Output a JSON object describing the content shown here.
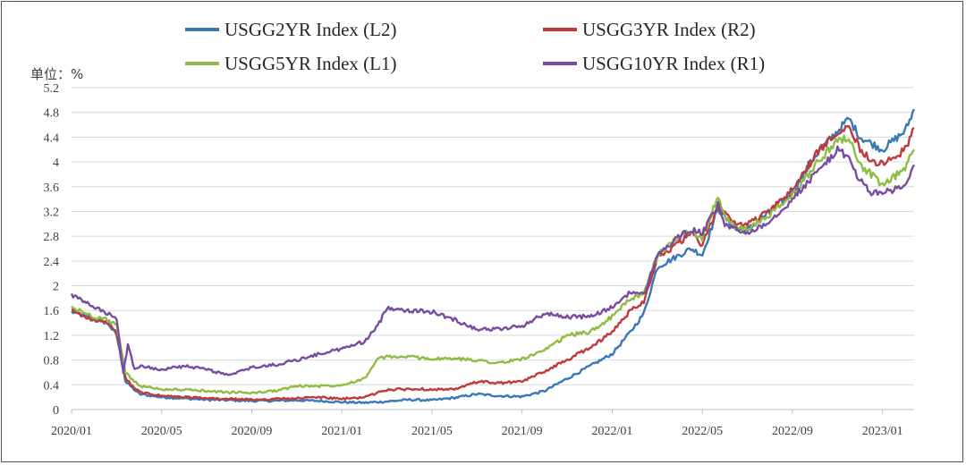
{
  "chart_data": {
    "type": "line",
    "title": "",
    "unit_label": "单位：%",
    "xlabel": "",
    "ylabel": "",
    "ylim": [
      0,
      5.2
    ],
    "yticks": [
      "0",
      "0.4",
      "0.8",
      "1.2",
      "1.6",
      "2",
      "2.4",
      "2.8",
      "3.2",
      "3.6",
      "4",
      "4.4",
      "4.8",
      "5.2"
    ],
    "ytick_values": [
      0,
      0.4,
      0.8,
      1.2,
      1.6,
      2,
      2.4,
      2.8,
      3.2,
      3.6,
      4,
      4.4,
      4.8,
      5.2
    ],
    "xticks": [
      "2020/01",
      "2020/05",
      "2020/09",
      "2021/01",
      "2021/05",
      "2021/09",
      "2022/01",
      "2022/05",
      "2022/09",
      "2023/01"
    ],
    "xtick_months": [
      0,
      4,
      8,
      12,
      16,
      20,
      24,
      28,
      32,
      36
    ],
    "xrange_months": [
      0,
      37.4
    ],
    "grid": true,
    "legend_position": "top",
    "series": [
      {
        "name": "USGG2YR Index  (L2)",
        "color": "#3a78b8",
        "x": [
          0,
          1,
          1.6,
          2,
          2.4,
          3,
          4,
          5,
          6,
          7,
          8,
          9,
          10,
          11,
          12,
          13,
          14,
          15,
          16,
          17,
          18,
          19,
          20,
          21,
          22,
          23,
          24,
          24.8,
          25.4,
          26,
          27,
          27.5,
          28,
          28.7,
          29,
          29.5,
          30,
          31,
          32,
          33,
          34,
          34.5,
          35,
          35.5,
          36,
          37,
          37.4
        ],
        "values": [
          1.58,
          1.45,
          1.4,
          1.2,
          0.45,
          0.25,
          0.2,
          0.18,
          0.16,
          0.15,
          0.14,
          0.14,
          0.15,
          0.14,
          0.12,
          0.11,
          0.13,
          0.16,
          0.15,
          0.19,
          0.25,
          0.22,
          0.21,
          0.3,
          0.5,
          0.7,
          0.9,
          1.25,
          1.55,
          2.3,
          2.5,
          2.6,
          2.5,
          3.25,
          3.1,
          2.9,
          2.9,
          3.2,
          3.5,
          4.1,
          4.5,
          4.7,
          4.4,
          4.3,
          4.2,
          4.5,
          4.85
        ]
      },
      {
        "name": "USGG3YR Index  (R2)",
        "color": "#c0393b",
        "x": [
          0,
          1,
          1.6,
          2,
          2.4,
          3,
          4,
          5,
          6,
          7,
          8,
          9,
          10,
          11,
          12,
          13,
          14,
          15,
          16,
          17,
          18,
          19,
          20,
          21,
          22,
          23,
          24,
          24.8,
          25.4,
          26,
          27,
          27.5,
          28,
          28.7,
          29,
          29.5,
          30,
          31,
          32,
          33,
          34,
          34.5,
          35,
          35.5,
          36,
          37,
          37.4
        ],
        "values": [
          1.6,
          1.45,
          1.4,
          1.25,
          0.5,
          0.28,
          0.22,
          0.2,
          0.18,
          0.17,
          0.16,
          0.17,
          0.18,
          0.2,
          0.17,
          0.2,
          0.32,
          0.33,
          0.33,
          0.32,
          0.45,
          0.43,
          0.45,
          0.62,
          0.8,
          1.0,
          1.25,
          1.6,
          1.75,
          2.45,
          2.7,
          2.85,
          2.65,
          3.3,
          3.15,
          3.0,
          3.0,
          3.2,
          3.55,
          4.1,
          4.5,
          4.6,
          4.2,
          4.05,
          3.95,
          4.2,
          4.55
        ]
      },
      {
        "name": "USGG5YR Index  (L1)",
        "color": "#8fbc45",
        "x": [
          0,
          1,
          1.6,
          2,
          2.4,
          3,
          4,
          5,
          6,
          7,
          8,
          9,
          10,
          11,
          12,
          13,
          13.6,
          14,
          15,
          16,
          17,
          18,
          19,
          20,
          21,
          22,
          23,
          24,
          24.8,
          25.4,
          26,
          27,
          27.5,
          28,
          28.7,
          29,
          29.5,
          30,
          31,
          32,
          33,
          34,
          34.5,
          35,
          35.5,
          36,
          37,
          37.4
        ],
        "values": [
          1.65,
          1.5,
          1.45,
          1.35,
          0.6,
          0.38,
          0.33,
          0.32,
          0.3,
          0.28,
          0.27,
          0.3,
          0.38,
          0.38,
          0.4,
          0.5,
          0.82,
          0.85,
          0.85,
          0.82,
          0.82,
          0.8,
          0.75,
          0.82,
          0.95,
          1.2,
          1.25,
          1.5,
          1.8,
          1.85,
          2.5,
          2.8,
          2.9,
          2.75,
          3.45,
          3.1,
          2.95,
          2.9,
          3.15,
          3.45,
          3.95,
          4.35,
          4.4,
          3.95,
          3.8,
          3.6,
          3.9,
          4.2
        ]
      },
      {
        "name": "USGG10YR Index  (R1)",
        "color": "#7a4ca0",
        "x": [
          0,
          1,
          1.6,
          2,
          2.3,
          2.5,
          2.8,
          3,
          4,
          5,
          6,
          7,
          8,
          9,
          10,
          11,
          12,
          13,
          13.6,
          14,
          15,
          16,
          17,
          18,
          19,
          20,
          21,
          22,
          23,
          24,
          24.8,
          25.4,
          26,
          27,
          27.5,
          28,
          28.7,
          29,
          29.5,
          30,
          31,
          32,
          33,
          34,
          34.5,
          35,
          35.5,
          36,
          37,
          37.4
        ],
        "values": [
          1.85,
          1.65,
          1.55,
          1.45,
          0.6,
          1.05,
          0.65,
          0.7,
          0.65,
          0.7,
          0.65,
          0.55,
          0.68,
          0.72,
          0.8,
          0.9,
          0.98,
          1.1,
          1.35,
          1.65,
          1.6,
          1.58,
          1.45,
          1.3,
          1.3,
          1.35,
          1.55,
          1.5,
          1.5,
          1.65,
          1.9,
          1.85,
          2.5,
          2.8,
          2.9,
          2.85,
          3.3,
          3.0,
          2.9,
          2.85,
          3.05,
          3.4,
          3.8,
          4.2,
          4.05,
          3.7,
          3.5,
          3.5,
          3.6,
          3.95
        ]
      }
    ]
  }
}
